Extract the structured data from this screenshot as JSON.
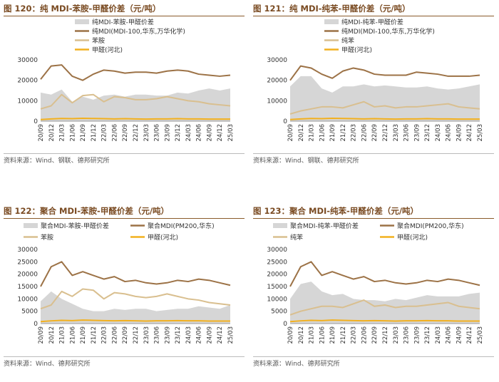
{
  "colors": {
    "spread": "#d6d6d6",
    "mdi": "#9c7246",
    "feedstock": "#d9bf8f",
    "methanol": "#f2b01e",
    "title": "#7a4b22"
  },
  "source_label": "资料来源：Wind、钢联、德邦研究所",
  "source_label_2": "资料来源：Wind、德邦研究所",
  "chart_data": [
    {
      "type": "line",
      "number": "图 120：",
      "title": "纯 MDI-苯胺-甲醛价差（元/吨）",
      "ylim": [
        0,
        30000
      ],
      "yticks": [
        "0",
        "10000",
        "20000",
        "30000"
      ],
      "x": [
        "20/09",
        "20/12",
        "21/03",
        "21/06",
        "21/09",
        "21/12",
        "22/03",
        "22/06",
        "22/09",
        "22/12",
        "23/03",
        "23/06",
        "23/09",
        "23/12",
        "24/03",
        "24/06",
        "24/09",
        "24/12",
        "25/03"
      ],
      "legend": [
        "纯MDI-苯胺-甲醛价差",
        "纯MDI(MDI-100,华东,万华化学)",
        "苯胺",
        "甲醛(河北)"
      ],
      "series": [
        {
          "name": "纯MDI-苯胺-甲醛价差",
          "kind": "area",
          "values": [
            14000,
            13000,
            15500,
            9500,
            12000,
            10500,
            12500,
            13000,
            12000,
            13000,
            13000,
            12500,
            12500,
            14000,
            13500,
            15000,
            16000,
            15000,
            16000
          ]
        },
        {
          "name": "纯MDI(MDI-100,华东,万华化学)",
          "kind": "line",
          "values": [
            20500,
            27000,
            27500,
            22000,
            20000,
            23000,
            25000,
            24500,
            23500,
            24000,
            24000,
            23500,
            24500,
            25000,
            24500,
            23000,
            22500,
            22000,
            22500
          ]
        },
        {
          "name": "苯胺",
          "kind": "line",
          "values": [
            6000,
            7500,
            13000,
            9000,
            12500,
            13000,
            9500,
            12000,
            11500,
            10500,
            10500,
            11000,
            12000,
            11000,
            10000,
            9500,
            8500,
            8000,
            7500
          ]
        },
        {
          "name": "甲醛(河北)",
          "kind": "line",
          "values": [
            800,
            1100,
            1300,
            1200,
            1400,
            1300,
            1200,
            1100,
            1200,
            1100,
            1000,
            1100,
            1100,
            1200,
            1100,
            1100,
            1000,
            1000,
            1000
          ]
        }
      ]
    },
    {
      "type": "line",
      "number": "图 121：",
      "title": "纯 MDI-纯苯-甲醛价差（元/吨）",
      "ylim": [
        0,
        30000
      ],
      "yticks": [
        "0",
        "10000",
        "20000",
        "30000"
      ],
      "x": [
        "20/09",
        "20/12",
        "21/03",
        "21/06",
        "21/09",
        "21/12",
        "22/03",
        "22/06",
        "22/09",
        "22/12",
        "23/03",
        "23/06",
        "23/09",
        "23/12",
        "24/03",
        "24/06",
        "24/09",
        "24/12",
        "25/03"
      ],
      "legend": [
        "纯MDI-纯苯-甲醛价差",
        "纯MDI(MDI-100,华东,万华化学)",
        "纯苯",
        "甲醛(河北)"
      ],
      "series": [
        {
          "name": "纯MDI-纯苯-甲醛价差",
          "kind": "area",
          "values": [
            17000,
            22000,
            22000,
            16000,
            14000,
            17000,
            17000,
            18000,
            17000,
            17500,
            17000,
            16500,
            16500,
            17000,
            16000,
            15500,
            16000,
            17000,
            18000
          ]
        },
        {
          "name": "纯MDI(MDI-100,华东,万华化学)",
          "kind": "line",
          "values": [
            20000,
            27000,
            26000,
            23000,
            21000,
            24500,
            26000,
            25000,
            23000,
            22500,
            22500,
            22500,
            24000,
            23500,
            23000,
            22000,
            22000,
            22000,
            22500
          ]
        },
        {
          "name": "纯苯",
          "kind": "line",
          "values": [
            3500,
            5000,
            6000,
            7000,
            7000,
            6500,
            8000,
            9500,
            7000,
            7500,
            6500,
            7000,
            7000,
            7500,
            8000,
            8500,
            7000,
            6500,
            6000
          ]
        },
        {
          "name": "甲醛(河北)",
          "kind": "line",
          "values": [
            800,
            1100,
            1300,
            1200,
            1400,
            1300,
            1200,
            1100,
            1200,
            1100,
            1000,
            1100,
            1100,
            1200,
            1100,
            1100,
            1000,
            1000,
            1000
          ]
        }
      ]
    },
    {
      "type": "line",
      "number": "图 122：",
      "title": "聚合 MDI-苯胺-甲醛价差（元/吨）",
      "ylim": [
        0,
        30000
      ],
      "yticks": [
        "0",
        "5000",
        "10000",
        "15000",
        "20000",
        "25000",
        "30000"
      ],
      "x": [
        "20/09",
        "20/12",
        "21/03",
        "21/06",
        "21/09",
        "21/12",
        "22/03",
        "22/06",
        "22/09",
        "22/12",
        "23/03",
        "23/06",
        "23/09",
        "23/12",
        "24/03",
        "24/06",
        "24/09",
        "24/12",
        "25/03"
      ],
      "legend": [
        "聚合MDI-苯胺-甲醛价差",
        "聚合MDI(PM200,华东)",
        "苯胺",
        "甲醛(河北)"
      ],
      "series": [
        {
          "name": "聚合MDI-苯胺-甲醛价差",
          "kind": "area",
          "values": [
            9000,
            13000,
            10000,
            8000,
            6000,
            5000,
            5000,
            6000,
            5500,
            6000,
            6000,
            5000,
            5500,
            6000,
            6000,
            7000,
            6500,
            6000,
            7500
          ]
        },
        {
          "name": "聚合MDI(PM200,华东)",
          "kind": "line",
          "values": [
            15000,
            23000,
            25000,
            19500,
            21000,
            19500,
            18000,
            19000,
            17000,
            17500,
            16500,
            16000,
            16500,
            17500,
            17000,
            18000,
            17500,
            16500,
            15500
          ]
        },
        {
          "name": "苯胺",
          "kind": "line",
          "values": [
            6000,
            7500,
            13000,
            11000,
            14000,
            13500,
            10000,
            12500,
            12000,
            11000,
            10500,
            11000,
            12000,
            11000,
            10000,
            9500,
            8500,
            8000,
            7500
          ]
        },
        {
          "name": "甲醛(河北)",
          "kind": "line",
          "values": [
            800,
            1100,
            1300,
            1200,
            1400,
            1300,
            1200,
            1100,
            1200,
            1100,
            1000,
            1100,
            1100,
            1200,
            1100,
            1100,
            1000,
            1000,
            1000
          ]
        }
      ]
    },
    {
      "type": "line",
      "number": "图 123：",
      "title": "聚合 MDI-纯苯-甲醛价差（元/吨）",
      "ylim": [
        0,
        30000
      ],
      "yticks": [
        "0",
        "5000",
        "10000",
        "15000",
        "20000",
        "25000",
        "30000"
      ],
      "x": [
        "20/09",
        "20/12",
        "21/03",
        "21/06",
        "21/09",
        "21/12",
        "22/03",
        "22/06",
        "22/09",
        "22/12",
        "23/03",
        "23/06",
        "23/09",
        "23/12",
        "24/03",
        "24/06",
        "24/09",
        "24/12",
        "25/03"
      ],
      "legend": [
        "聚合MDI-纯苯-甲醛价差",
        "聚合MDI(PM200,华东)",
        "纯苯",
        "甲醛(河北)"
      ],
      "series": [
        {
          "name": "聚合MDI-纯苯-甲醛价差",
          "kind": "area",
          "values": [
            10000,
            16000,
            17000,
            13000,
            11500,
            12000,
            10000,
            9500,
            9500,
            9000,
            10000,
            9500,
            10500,
            11500,
            11000,
            11000,
            11000,
            12000,
            12500
          ]
        },
        {
          "name": "聚合MDI(PM200,华东)",
          "kind": "line",
          "values": [
            15000,
            23000,
            25000,
            19500,
            21000,
            19500,
            18000,
            19000,
            17000,
            17500,
            16500,
            16000,
            16500,
            17500,
            17000,
            18000,
            17500,
            16500,
            15500
          ]
        },
        {
          "name": "纯苯",
          "kind": "line",
          "values": [
            3500,
            5000,
            6000,
            7000,
            7000,
            6500,
            8000,
            9500,
            7000,
            7500,
            6500,
            7000,
            7000,
            7500,
            8000,
            8500,
            7000,
            6500,
            6000
          ]
        },
        {
          "name": "甲醛(河北)",
          "kind": "line",
          "values": [
            800,
            1100,
            1300,
            1200,
            1400,
            1300,
            1200,
            1100,
            1200,
            1100,
            1000,
            1100,
            1100,
            1200,
            1100,
            1100,
            1000,
            1000,
            1000
          ]
        }
      ]
    }
  ]
}
